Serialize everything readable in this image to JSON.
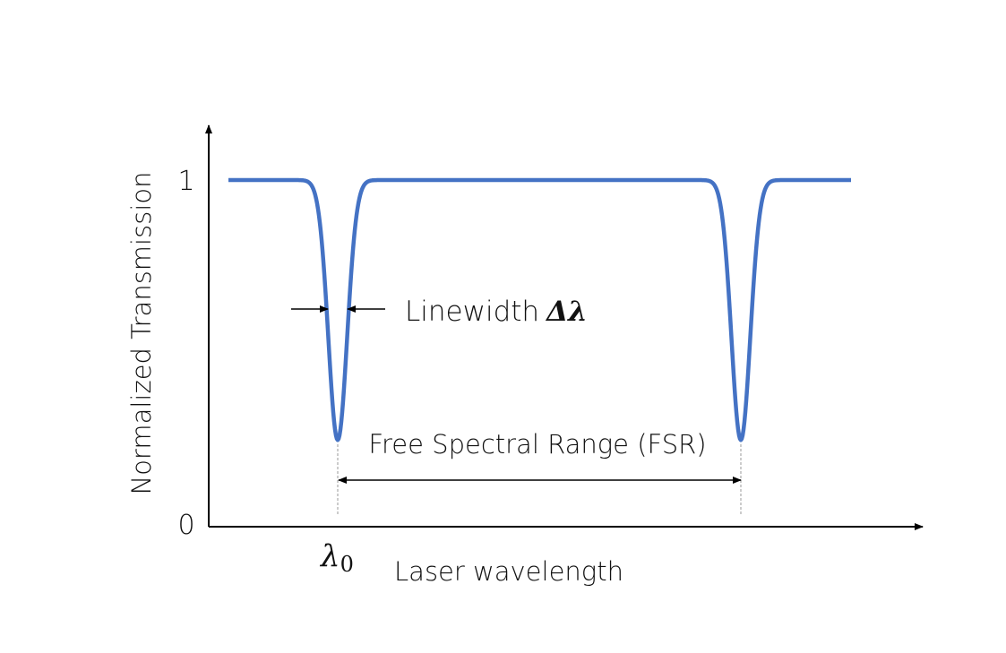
{
  "chart_data": {
    "type": "line",
    "ylabel": "Normalized Transmission",
    "xlabel": "Laser wavelength",
    "yticks": [
      "0",
      "1"
    ],
    "ylim": [
      0,
      1
    ],
    "series_color": "#4472c4",
    "baseline_transmission": 1,
    "resonance_min_transmission": 0.25,
    "resonance_count": 2,
    "annotations": {
      "lambda0": "λ",
      "lambda0_sub": "0",
      "linewidth": "Linewidth",
      "linewidth_symbol": "Δλ",
      "fsr": "Free Spectral Range (FSR)"
    }
  }
}
